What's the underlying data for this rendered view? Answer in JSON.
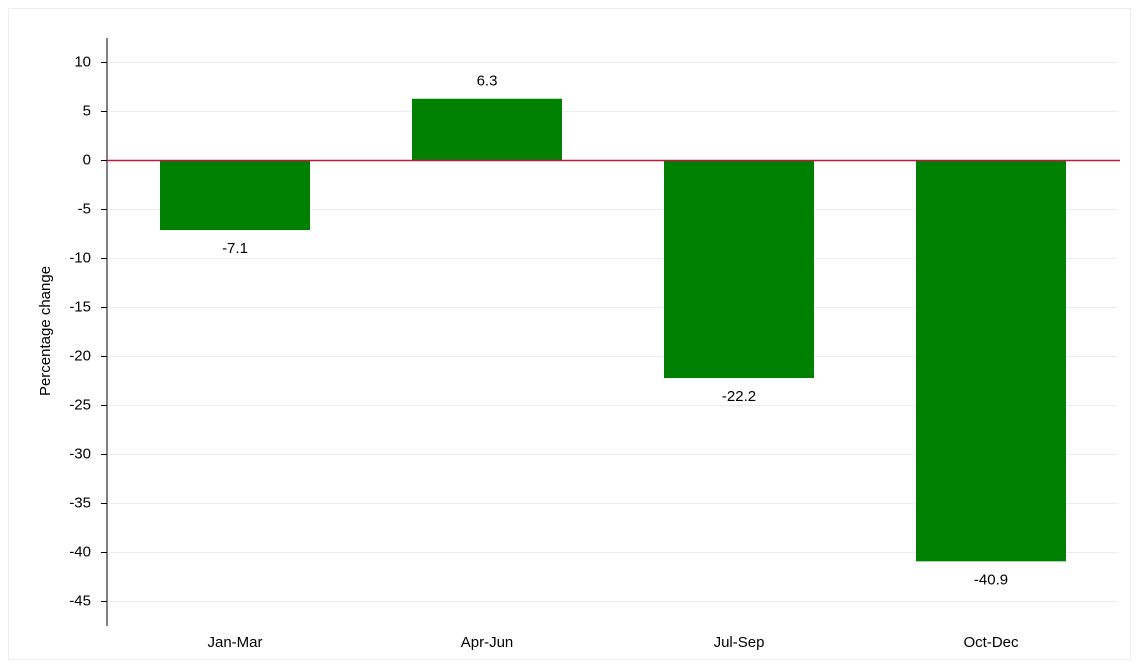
{
  "chart_data": {
    "type": "bar",
    "y_label": "Percentage change",
    "categories": [
      "Jan-Mar",
      "Apr-Jun",
      "Jul-Sep",
      "Oct-Dec"
    ],
    "values": [
      -7.1,
      6.3,
      -22.2,
      -40.9
    ],
    "color": "#008000",
    "ylim": [
      -47.5,
      12.5
    ],
    "yticks": [
      10,
      5,
      0,
      -5,
      -10,
      -15,
      -20,
      -25,
      -30,
      -35,
      -40,
      -45
    ],
    "grid": true,
    "reference_line": {
      "value": 0,
      "color": "#c8143c"
    }
  }
}
